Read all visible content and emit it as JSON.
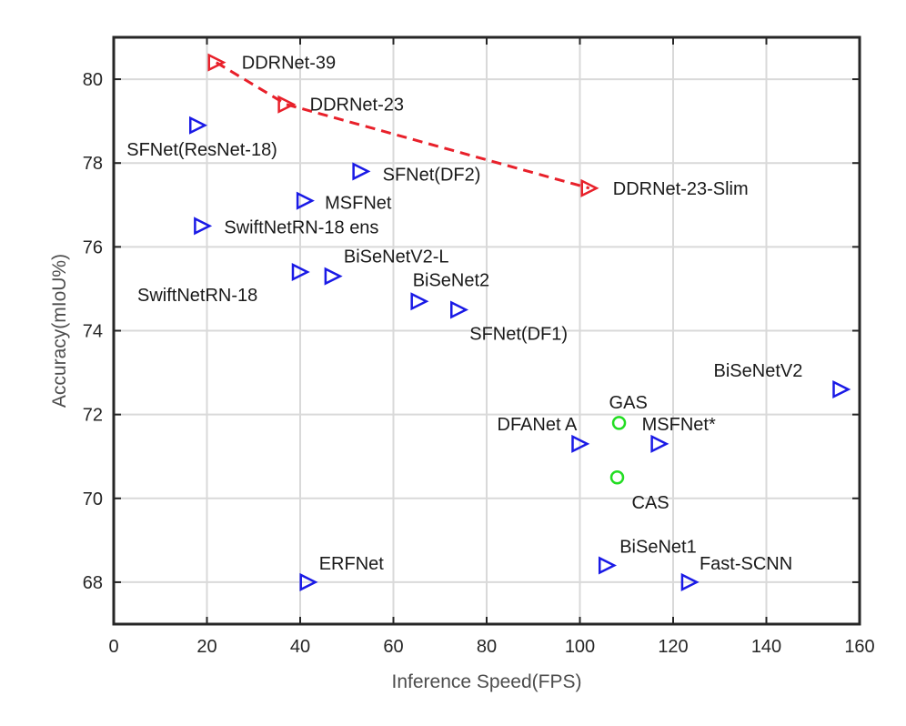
{
  "chart_data": {
    "type": "scatter",
    "xlabel": "Inference Speed(FPS)",
    "ylabel": "Accuracy(mIoU%)",
    "xlim": [
      0,
      160
    ],
    "ylim": [
      67,
      81
    ],
    "xticks": [
      0,
      20,
      40,
      60,
      80,
      100,
      120,
      140,
      160
    ],
    "yticks": [
      68,
      70,
      72,
      74,
      76,
      78,
      80
    ],
    "grid": true,
    "colors": {
      "ddrnet": "#e8202a",
      "others": "#1a1ae6",
      "nas": "#22dd22"
    },
    "trend_line": {
      "series": "ddrnet",
      "style": "dashed",
      "points": [
        [
          22,
          80.4
        ],
        [
          37,
          79.4
        ],
        [
          102,
          77.4
        ]
      ]
    },
    "points": [
      {
        "label": "DDRNet-39",
        "x": 22,
        "y": 80.4,
        "marker": "triangle-right",
        "group": "ddrnet"
      },
      {
        "label": "DDRNet-23",
        "x": 37,
        "y": 79.4,
        "marker": "triangle-right",
        "group": "ddrnet"
      },
      {
        "label": "DDRNet-23-Slim",
        "x": 102,
        "y": 77.4,
        "marker": "triangle-right",
        "group": "ddrnet"
      },
      {
        "label": "SFNet(ResNet-18)",
        "x": 18,
        "y": 78.9,
        "marker": "triangle-right",
        "group": "others"
      },
      {
        "label": "SFNet(DF2)",
        "x": 53,
        "y": 77.8,
        "marker": "triangle-right",
        "group": "others"
      },
      {
        "label": "MSFNet",
        "x": 41,
        "y": 77.1,
        "marker": "triangle-right",
        "group": "others"
      },
      {
        "label": "SwiftNetRN-18 ens",
        "x": 19,
        "y": 76.5,
        "marker": "triangle-right",
        "group": "others"
      },
      {
        "label": "SwiftNetRN-18",
        "x": 40,
        "y": 75.4,
        "marker": "triangle-right",
        "group": "others"
      },
      {
        "label": "BiSeNetV2-L",
        "x": 47,
        "y": 75.3,
        "marker": "triangle-right",
        "group": "others"
      },
      {
        "label": "BiSeNet2",
        "x": 65.5,
        "y": 74.7,
        "marker": "triangle-right",
        "group": "others"
      },
      {
        "label": "SFNet(DF1)",
        "x": 74,
        "y": 74.5,
        "marker": "triangle-right",
        "group": "others"
      },
      {
        "label": "BiSeNetV2",
        "x": 156,
        "y": 72.6,
        "marker": "triangle-right",
        "group": "others"
      },
      {
        "label": "DFANet A",
        "x": 100,
        "y": 71.3,
        "marker": "triangle-right",
        "group": "others"
      },
      {
        "label": "MSFNet*",
        "x": 117,
        "y": 71.3,
        "marker": "triangle-right",
        "group": "others"
      },
      {
        "label": "GAS",
        "x": 108.4,
        "y": 71.8,
        "marker": "circle",
        "group": "nas"
      },
      {
        "label": "CAS",
        "x": 108,
        "y": 70.5,
        "marker": "circle",
        "group": "nas"
      },
      {
        "label": "ERFNet",
        "x": 41.7,
        "y": 68.0,
        "marker": "triangle-right",
        "group": "others"
      },
      {
        "label": "BiSeNet1",
        "x": 105.8,
        "y": 68.4,
        "marker": "triangle-right",
        "group": "others"
      },
      {
        "label": "Fast-SCNN",
        "x": 123.5,
        "y": 68.0,
        "marker": "triangle-right",
        "group": "others"
      }
    ]
  }
}
